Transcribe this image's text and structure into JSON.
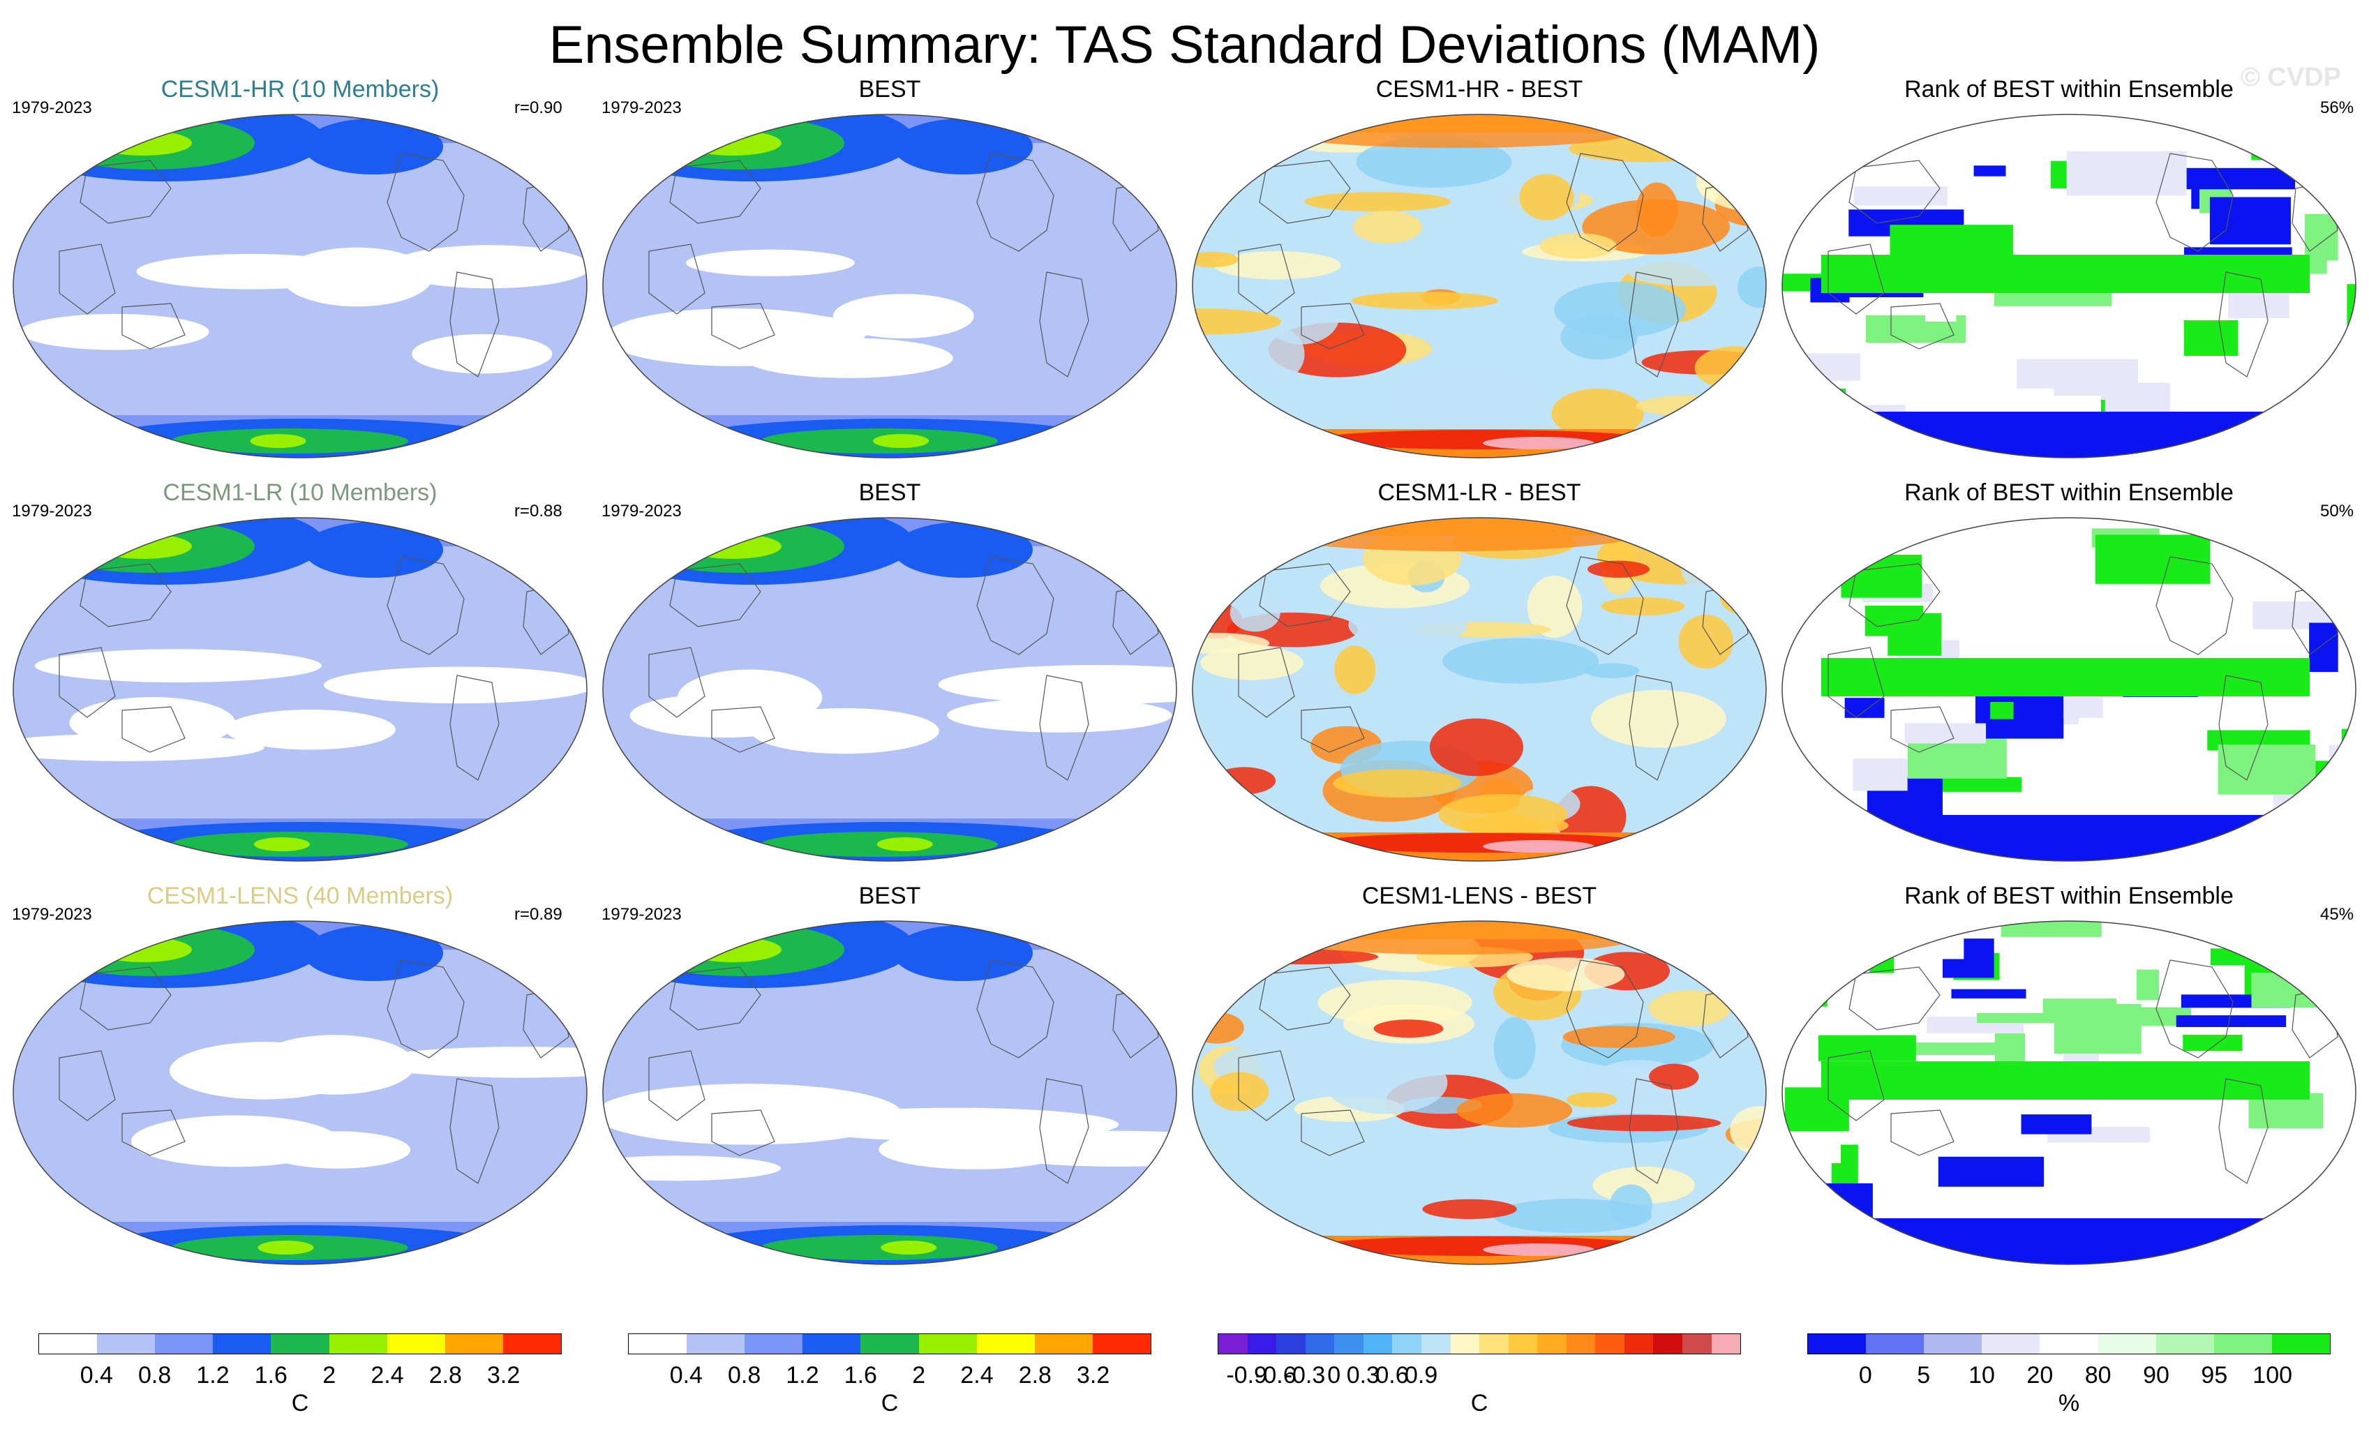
{
  "title": "Ensemble Summary: TAS Standard Deviations (MAM)",
  "watermark": "© CVDP",
  "rows": [
    {
      "model_title": "CESM1-HR (10 Members)",
      "model_color": "#2e7d91",
      "period": "1979-2023",
      "r_value": "r=0.90",
      "obs_title": "BEST",
      "diff_title": "CESM1-HR - BEST",
      "rank_title": "Rank of BEST within Ensemble",
      "rank_pct": "56%"
    },
    {
      "model_title": "CESM1-LR (10 Members)",
      "model_color": "#7a9a7a",
      "period": "1979-2023",
      "r_value": "r=0.88",
      "obs_title": "BEST",
      "diff_title": "CESM1-LR - BEST",
      "rank_title": "Rank of BEST within Ensemble",
      "rank_pct": "50%"
    },
    {
      "model_title": "CESM1-LENS (40 Members)",
      "model_color": "#d9cc85",
      "period": "1979-2023",
      "r_value": "r=0.89",
      "obs_title": "BEST",
      "diff_title": "CESM1-LENS - BEST",
      "rank_title": "Rank of BEST within Ensemble",
      "rank_pct": "45%"
    }
  ],
  "colorbars": {
    "stddev": {
      "colors": [
        "#ffffff",
        "#b4c3f5",
        "#7d95f5",
        "#1a5cf2",
        "#1ab84d",
        "#96f000",
        "#ffff00",
        "#ffa500",
        "#ff2a00"
      ],
      "ticks": [
        "0.4",
        "0.8",
        "1.2",
        "1.6",
        "2",
        "2.4",
        "2.8",
        "3.2"
      ],
      "unit": "C"
    },
    "diff": {
      "colors": [
        "#7a1fd6",
        "#3a1ae6",
        "#2a3fe0",
        "#2f6ae8",
        "#3d8ff0",
        "#4fb3f5",
        "#8fd2f7",
        "#bfe3f7",
        "#fff7c4",
        "#ffe17a",
        "#ffc93d",
        "#ffad1f",
        "#ff8a1a",
        "#ff5c12",
        "#f02a0d",
        "#d10e0e",
        "#cf4a4a",
        "#f5aab4"
      ],
      "ticks": [
        "-0.9",
        "-0.6",
        "-0.3",
        "0",
        "0.3",
        "0.6",
        "0.9"
      ],
      "unit": "C"
    },
    "rank": {
      "colors": [
        "#0a14f0",
        "#6272f5",
        "#b0b8f2",
        "#e6e8fa",
        "#ffffff",
        "#e6fce6",
        "#b4f7b4",
        "#7ef27e",
        "#19eb19"
      ],
      "ticks": [
        "0",
        "5",
        "10",
        "20",
        "80",
        "90",
        "95",
        "100"
      ],
      "unit": "%"
    }
  }
}
